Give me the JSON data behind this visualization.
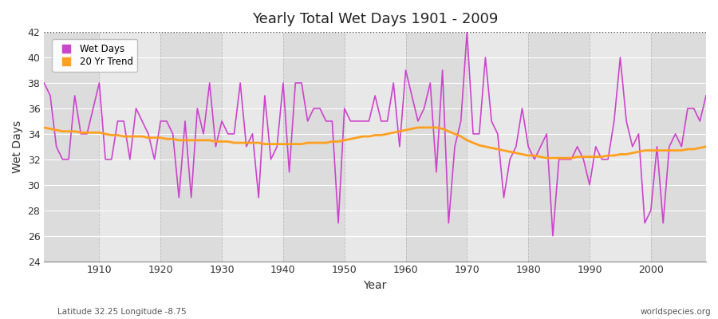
{
  "title": "Yearly Total Wet Days 1901 - 2009",
  "xlabel": "Year",
  "ylabel": "Wet Days",
  "bottom_left_label": "Latitude 32.25 Longitude -8.75",
  "bottom_right_label": "worldspecies.org",
  "ylim": [
    24,
    42
  ],
  "yticks": [
    24,
    26,
    28,
    30,
    32,
    34,
    36,
    38,
    40,
    42
  ],
  "xlim": [
    1901,
    2009
  ],
  "xticks": [
    1910,
    1920,
    1930,
    1940,
    1950,
    1960,
    1970,
    1980,
    1990,
    2000
  ],
  "hline_y": 42,
  "wet_days_color": "#CC44CC",
  "trend_color": "#FFA020",
  "background_color": "#FFFFFF",
  "plot_bg_color": "#E0E0E0",
  "grid_color": "#FFFFFF",
  "legend_items": [
    "Wet Days",
    "20 Yr Trend"
  ],
  "years": [
    1901,
    1902,
    1903,
    1904,
    1905,
    1906,
    1907,
    1908,
    1909,
    1910,
    1911,
    1912,
    1913,
    1914,
    1915,
    1916,
    1917,
    1918,
    1919,
    1920,
    1921,
    1922,
    1923,
    1924,
    1925,
    1926,
    1927,
    1928,
    1929,
    1930,
    1931,
    1932,
    1933,
    1934,
    1935,
    1936,
    1937,
    1938,
    1939,
    1940,
    1941,
    1942,
    1943,
    1944,
    1945,
    1946,
    1947,
    1948,
    1949,
    1950,
    1951,
    1952,
    1953,
    1954,
    1955,
    1956,
    1957,
    1958,
    1959,
    1960,
    1961,
    1962,
    1963,
    1964,
    1965,
    1966,
    1967,
    1968,
    1969,
    1970,
    1971,
    1972,
    1973,
    1974,
    1975,
    1976,
    1977,
    1978,
    1979,
    1980,
    1981,
    1982,
    1983,
    1984,
    1985,
    1986,
    1987,
    1988,
    1989,
    1990,
    1991,
    1992,
    1993,
    1994,
    1995,
    1996,
    1997,
    1998,
    1999,
    2000,
    2001,
    2002,
    2003,
    2004,
    2005,
    2006,
    2007,
    2008,
    2009
  ],
  "wet_days": [
    38,
    37,
    33,
    32,
    32,
    37,
    34,
    34,
    36,
    38,
    32,
    32,
    35,
    35,
    32,
    36,
    35,
    34,
    32,
    35,
    35,
    34,
    29,
    35,
    29,
    36,
    34,
    38,
    33,
    35,
    34,
    34,
    38,
    33,
    34,
    29,
    37,
    32,
    33,
    38,
    31,
    38,
    38,
    35,
    36,
    36,
    35,
    35,
    27,
    36,
    35,
    35,
    35,
    35,
    37,
    35,
    35,
    38,
    33,
    39,
    37,
    35,
    36,
    38,
    31,
    39,
    27,
    33,
    35,
    42,
    34,
    34,
    40,
    35,
    34,
    29,
    32,
    33,
    36,
    33,
    32,
    33,
    34,
    26,
    32,
    32,
    32,
    33,
    32,
    30,
    33,
    32,
    32,
    35,
    40,
    35,
    33,
    34,
    27,
    28,
    33,
    27,
    33,
    34,
    33,
    36,
    36,
    35,
    37
  ],
  "trend": [
    34.5,
    34.4,
    34.3,
    34.2,
    34.2,
    34.2,
    34.1,
    34.1,
    34.1,
    34.1,
    34.0,
    33.9,
    33.9,
    33.8,
    33.8,
    33.8,
    33.8,
    33.7,
    33.7,
    33.7,
    33.6,
    33.6,
    33.5,
    33.5,
    33.5,
    33.5,
    33.5,
    33.5,
    33.4,
    33.4,
    33.4,
    33.3,
    33.3,
    33.3,
    33.3,
    33.3,
    33.2,
    33.2,
    33.2,
    33.2,
    33.2,
    33.2,
    33.2,
    33.3,
    33.3,
    33.3,
    33.3,
    33.4,
    33.4,
    33.5,
    33.6,
    33.7,
    33.8,
    33.8,
    33.9,
    33.9,
    34.0,
    34.1,
    34.2,
    34.3,
    34.4,
    34.5,
    34.5,
    34.5,
    34.5,
    34.4,
    34.2,
    34.0,
    33.8,
    33.5,
    33.3,
    33.1,
    33.0,
    32.9,
    32.8,
    32.7,
    32.6,
    32.5,
    32.4,
    32.3,
    32.3,
    32.2,
    32.1,
    32.1,
    32.1,
    32.1,
    32.1,
    32.2,
    32.2,
    32.2,
    32.2,
    32.2,
    32.3,
    32.3,
    32.4,
    32.4,
    32.5,
    32.6,
    32.7,
    32.7,
    32.7,
    32.7,
    32.7,
    32.7,
    32.7,
    32.8,
    32.8,
    32.9,
    33.0
  ]
}
